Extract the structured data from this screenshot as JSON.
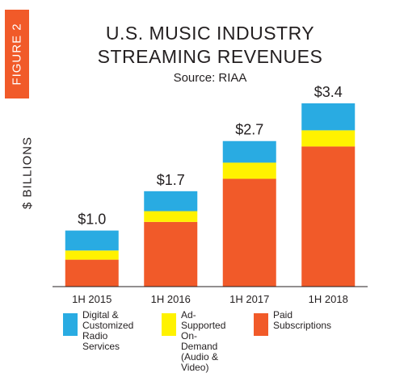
{
  "figure_label": "FIGURE 2",
  "title_line1": "U.S. MUSIC INDUSTRY",
  "title_line2": "STREAMING REVENUES",
  "subtitle": "Source: RIAA",
  "colors": {
    "figure_tab": "#f15a29",
    "digital": "#29abe2",
    "ad_supported": "#fff200",
    "paid": "#f15a29"
  },
  "chart_data": {
    "type": "bar",
    "stacked": true,
    "title": "U.S. MUSIC INDUSTRY STREAMING REVENUES",
    "subtitle": "Source: RIAA",
    "ylabel": "$ BILLIONS",
    "xlabel": "",
    "ylim": [
      0,
      3.4
    ],
    "grid": false,
    "legend_position": "bottom",
    "categories": [
      "1H 2015",
      "1H 2016",
      "1H 2017",
      "1H 2018"
    ],
    "totals": [
      1.0,
      1.7,
      2.7,
      3.4
    ],
    "total_labels": [
      "$1.0",
      "$1.7",
      "$2.7",
      "$3.4"
    ],
    "series": [
      {
        "name": "Paid Subscriptions",
        "values": [
          0.5,
          1.2,
          2.0,
          2.6
        ]
      },
      {
        "name": "Ad-Supported On-Demand (Audio & Video)",
        "values": [
          0.17,
          0.2,
          0.3,
          0.3
        ]
      },
      {
        "name": "Digital & Customized Radio Services",
        "values": [
          0.37,
          0.37,
          0.4,
          0.5
        ]
      }
    ]
  },
  "legend": [
    {
      "label": "Digital &\nCustomized\nRadio Services",
      "color": "#29abe2"
    },
    {
      "label": "Ad-Supported\nOn-Demand\n(Audio & Video)",
      "color": "#fff200"
    },
    {
      "label": "Paid Subscriptions",
      "color": "#f15a29"
    }
  ]
}
